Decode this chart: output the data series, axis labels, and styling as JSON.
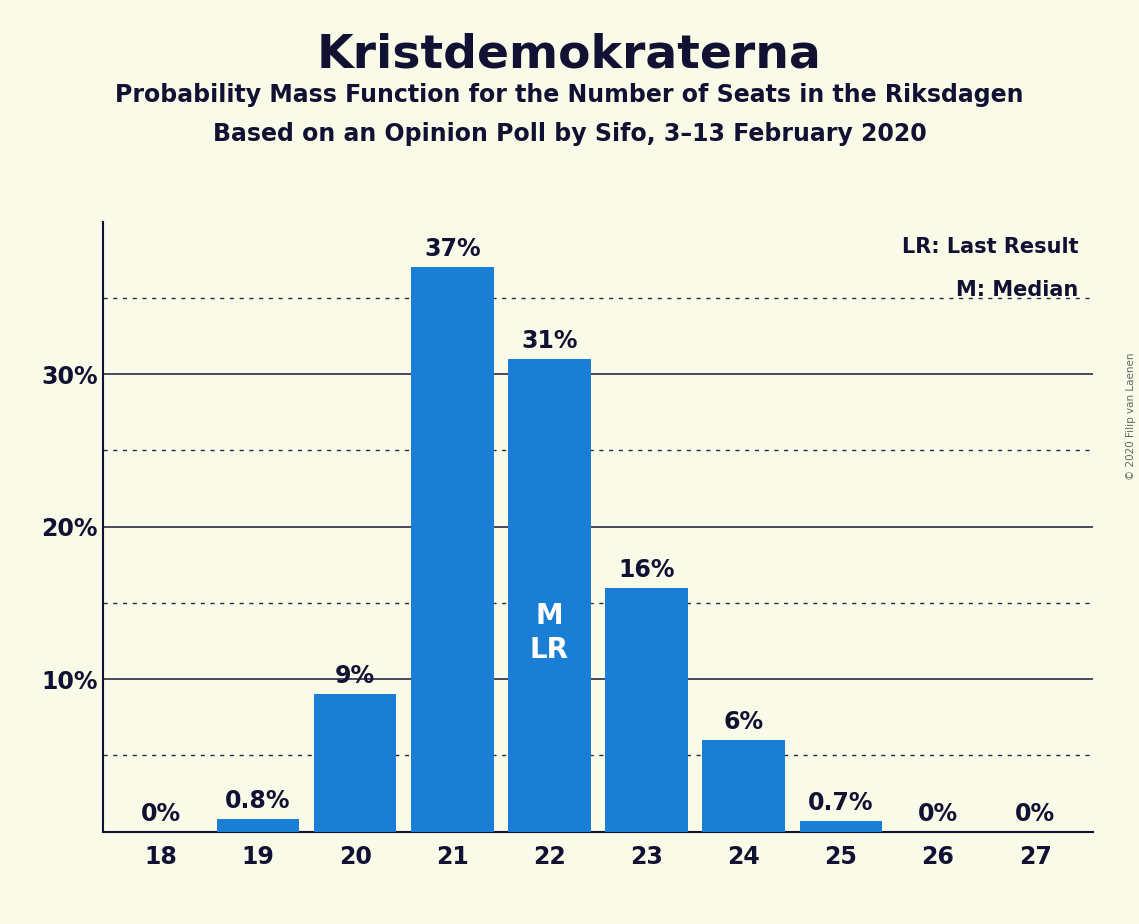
{
  "title": "Kristdemokraterna",
  "subtitle1": "Probability Mass Function for the Number of Seats in the Riksdagen",
  "subtitle2": "Based on an Opinion Poll by Sifo, 3–13 February 2020",
  "copyright": "© 2020 Filip van Laenen",
  "categories": [
    18,
    19,
    20,
    21,
    22,
    23,
    24,
    25,
    26,
    27
  ],
  "values": [
    0.0,
    0.8,
    9.0,
    37.0,
    31.0,
    16.0,
    6.0,
    0.7,
    0.0,
    0.0
  ],
  "labels": [
    "0%",
    "0.8%",
    "9%",
    "37%",
    "31%",
    "16%",
    "6%",
    "0.7%",
    "0%",
    "0%"
  ],
  "bar_color": "#1a7fd4",
  "background_color": "#fafae8",
  "median_seat": 22,
  "last_result_seat": 22,
  "legend_lr": "LR: Last Result",
  "legend_m": "M: Median",
  "yticks": [
    0,
    10,
    20,
    30
  ],
  "dotted_lines": [
    5,
    15,
    25,
    35
  ],
  "ylim": [
    0,
    40
  ],
  "title_fontsize": 34,
  "subtitle_fontsize": 17,
  "axis_fontsize": 17,
  "bar_label_fontsize": 17,
  "ml_fontsize": 20
}
